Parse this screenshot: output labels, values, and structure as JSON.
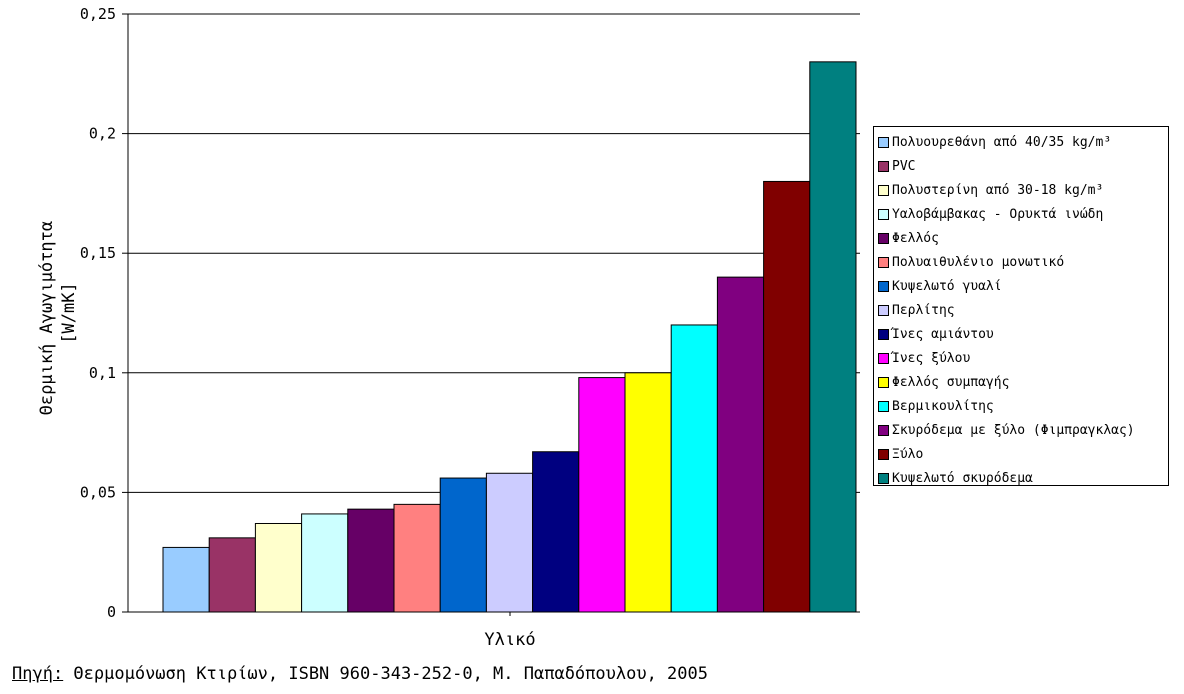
{
  "chart_data": {
    "type": "bar",
    "xlabel": "Υλικό",
    "ylabel_line1": "Θερμική Αγωγιμότητα",
    "ylabel_line2": "[W/mK]",
    "ylim": [
      0,
      0.25
    ],
    "yticks": [
      0,
      0.05,
      0.1,
      0.15,
      0.2,
      0.25
    ],
    "ytick_labels": [
      "0",
      "0,05",
      "0,1",
      "0,15",
      "0,2",
      "0,25"
    ],
    "grid": true,
    "legend_position": "right",
    "series": [
      {
        "name": "Πολυουρεθάνη από 40/35 kg/m³",
        "value": 0.027,
        "color": "#99CCFF"
      },
      {
        "name": "PVC",
        "value": 0.031,
        "color": "#993366"
      },
      {
        "name": "Πολυστερίνη από 30-18 kg/m³",
        "value": 0.037,
        "color": "#FFFFCC"
      },
      {
        "name": "Υαλοβάμβακας - Ορυκτά ινώδη",
        "value": 0.041,
        "color": "#CCFFFF"
      },
      {
        "name": "Φελλός",
        "value": 0.043,
        "color": "#660066"
      },
      {
        "name": "Πολυαιθυλένιο μονωτικό",
        "value": 0.045,
        "color": "#FF8080"
      },
      {
        "name": "Κυψελωτό γυαλί",
        "value": 0.056,
        "color": "#0066CC"
      },
      {
        "name": "Περλίτης",
        "value": 0.058,
        "color": "#CCCCFF"
      },
      {
        "name": "Ίνες αμιάντου",
        "value": 0.067,
        "color": "#000080"
      },
      {
        "name": "Ίνες ξύλου",
        "value": 0.098,
        "color": "#FF00FF"
      },
      {
        "name": "Φελλός συμπαγής",
        "value": 0.1,
        "color": "#FFFF00"
      },
      {
        "name": "Βερμικουλίτης",
        "value": 0.12,
        "color": "#00FFFF"
      },
      {
        "name": "Σκυρόδεμα με ξύλο (Φιμπραγκλας)",
        "value": 0.14,
        "color": "#800080"
      },
      {
        "name": "Ξύλο",
        "value": 0.18,
        "color": "#800000"
      },
      {
        "name": "Κυψελωτό σκυρόδεμα",
        "value": 0.23,
        "color": "#008080"
      }
    ]
  },
  "source": {
    "label": "Πηγή:",
    "text": " Θερμομόνωση Κτιρίων, ISBN 960-343-252-0, Μ. Παπαδόπουλου, 2005"
  }
}
